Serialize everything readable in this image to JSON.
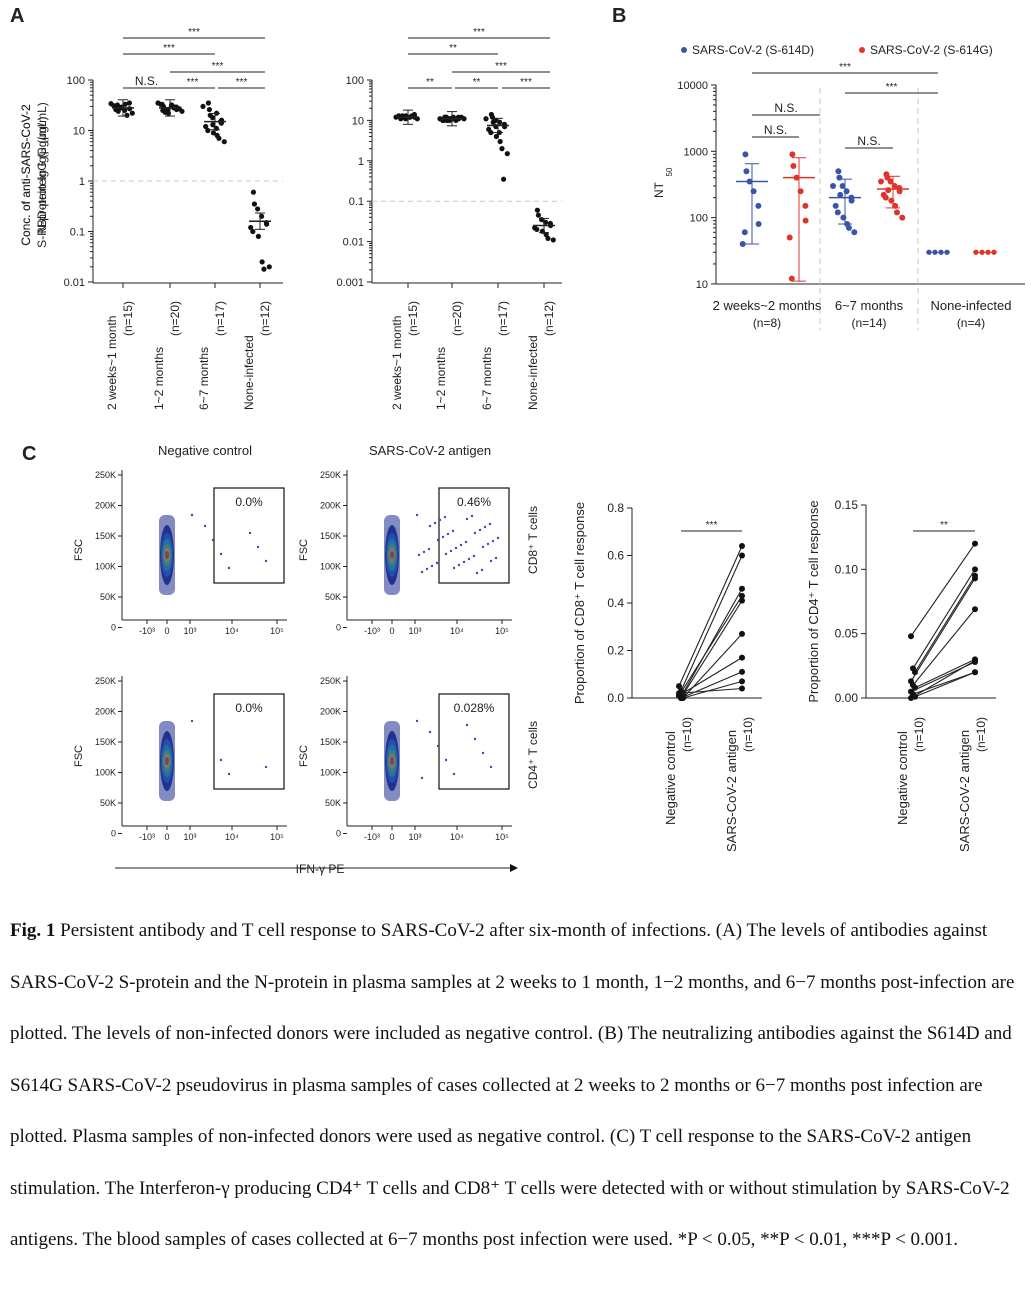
{
  "colors": {
    "s614d": "#3a55a8",
    "s614g": "#e0342a",
    "axis": "#222222",
    "dash": "#c8c8c8",
    "dot": "#1c2e8c"
  },
  "panelA": {
    "letter": "A",
    "left": {
      "ylabel1": "Conc. of anti-SARS-CoV-2",
      "ylabel2": "S-RBD-protein IgG (μg/mL)",
      "yticks": [
        "100",
        "10",
        "1",
        "0.1",
        "0.01"
      ],
      "groups": [
        {
          "label": "2 weeks~1 month",
          "n": "(n=15)",
          "values": [
            30,
            32,
            28,
            25,
            35,
            27,
            31,
            26,
            29,
            33,
            20,
            22,
            34,
            24,
            28
          ],
          "median": 28
        },
        {
          "label": "1~2 months",
          "n": "(n=20)",
          "values": [
            30,
            27,
            24,
            32,
            29,
            26,
            33,
            25,
            22,
            31,
            28,
            27,
            35,
            23,
            26,
            30,
            29,
            24,
            33,
            28
          ],
          "median": 28
        },
        {
          "label": "6~7 months",
          "n": "(n=17)",
          "values": [
            35,
            26,
            18,
            22,
            14,
            16,
            12,
            10,
            9,
            8,
            7,
            6,
            30,
            20,
            13,
            11,
            15
          ],
          "median": 15
        },
        {
          "label": "None-infected",
          "n": "(n=12)",
          "values": [
            0.6,
            0.35,
            0.28,
            0.2,
            0.15,
            0.14,
            0.12,
            0.1,
            0.08,
            0.025,
            0.018,
            0.02
          ],
          "median": 0.16
        }
      ],
      "sig": [
        "***",
        "***",
        "***",
        "N.S.",
        "***",
        "***"
      ]
    },
    "right": {
      "ylabel1": "Conc. of anti-SARS-CoV-2",
      "ylabel2": "N-protein IgG (μg/mL)",
      "yticks": [
        "100",
        "10",
        "1",
        "0.1",
        "0.01",
        "0.001"
      ],
      "groups": [
        {
          "label": "2 weeks~1 month",
          "n": "(n=15)",
          "values": [
            12,
            13,
            11,
            12,
            14,
            12,
            13,
            11,
            12,
            12,
            13,
            11,
            12,
            12,
            13
          ],
          "median": 12
        },
        {
          "label": "1~2 months",
          "n": "(n=20)",
          "values": [
            11,
            12,
            10,
            11,
            12,
            11,
            10,
            12,
            11,
            11,
            10,
            12,
            11,
            10,
            11,
            12,
            11,
            11,
            10,
            12
          ],
          "median": 11
        },
        {
          "label": "6~7 months",
          "n": "(n=17)",
          "values": [
            14,
            12,
            10,
            9,
            8,
            7,
            6,
            5,
            4,
            3,
            2,
            1.5,
            11,
            9,
            7,
            5,
            0.35
          ],
          "median": 7.5
        },
        {
          "label": "None-infected",
          "n": "(n=12)",
          "values": [
            0.06,
            0.045,
            0.035,
            0.03,
            0.028,
            0.025,
            0.022,
            0.02,
            0.018,
            0.015,
            0.012,
            0.011
          ],
          "median": 0.025
        }
      ],
      "sig": [
        "***",
        "**",
        "***",
        "**",
        "**",
        "***"
      ]
    }
  },
  "panelB": {
    "letter": "B",
    "legend": [
      "SARS-CoV-2 (S-614D)",
      "SARS-CoV-2 (S-614G)"
    ],
    "ylabel": "NT",
    "ylabel_sub": "50",
    "yticks": [
      "10000",
      "1000",
      "100",
      "10"
    ],
    "groups": [
      {
        "label": "2 weeks~2 months",
        "n": "(n=8)",
        "d": [
          900,
          500,
          350,
          250,
          150,
          80,
          40,
          60
        ],
        "d_mean": 350,
        "d_lo": 40,
        "d_hi": 650,
        "g": [
          900,
          600,
          400,
          250,
          150,
          90,
          50,
          12
        ],
        "g_mean": 400,
        "g_lo": 11,
        "g_hi": 800
      },
      {
        "label": "6~7 months",
        "n": "(n=14)",
        "d": [
          500,
          400,
          300,
          250,
          200,
          180,
          150,
          120,
          100,
          80,
          70,
          60,
          300,
          220
        ],
        "d_mean": 200,
        "d_lo": 80,
        "d_hi": 380,
        "g": [
          450,
          400,
          350,
          300,
          280,
          250,
          220,
          200,
          180,
          150,
          120,
          100,
          350,
          260
        ],
        "g_mean": 270,
        "g_lo": 140,
        "g_hi": 420
      },
      {
        "label": "None-infected",
        "n": "(n=4)",
        "d": [
          30,
          30,
          30,
          30
        ],
        "g": [
          30,
          30,
          30,
          30
        ]
      }
    ],
    "sig": [
      "***",
      "***",
      "N.S.",
      "N.S.",
      "N.S."
    ]
  },
  "panelC": {
    "letter": "C",
    "col_titles": [
      "Negative control",
      "SARS-CoV-2 antigen"
    ],
    "row_labels": [
      "CD8⁺ T cells",
      "CD4⁺ T cells"
    ],
    "gates": [
      "0.0%",
      "0.46%",
      "0.0%",
      "0.028%"
    ],
    "fsc_label": "FSC",
    "x_axis_label": "IFN-γ PE",
    "yticks": [
      "250K",
      "200K",
      "150K",
      "100K",
      "50K",
      "0"
    ],
    "xticks": [
      "-10³",
      "0",
      "10³",
      "10⁴",
      "10⁵"
    ],
    "cd8": {
      "ylabel": "Proportion of CD8⁺ T cell response",
      "yticks": [
        "0.8",
        "0.6",
        "0.4",
        "0.2",
        "0.0"
      ],
      "sig": "***",
      "x_labels": [
        "Negative control",
        "SARS-CoV-2 antigen"
      ],
      "x_n": [
        "(n=10)",
        "(n=10)"
      ],
      "pairs": [
        [
          0.05,
          0.64
        ],
        [
          0.03,
          0.6
        ],
        [
          0.02,
          0.46
        ],
        [
          0.01,
          0.43
        ],
        [
          0.0,
          0.41
        ],
        [
          0.0,
          0.27
        ],
        [
          0.01,
          0.17
        ],
        [
          0.0,
          0.11
        ],
        [
          0.0,
          0.07
        ],
        [
          0.02,
          0.04
        ]
      ]
    },
    "cd4": {
      "ylabel": "Proportion of CD4⁺ T cell response",
      "yticks": [
        "0.15",
        "0.10",
        "0.05",
        "0.00"
      ],
      "sig": "**",
      "x_labels": [
        "Negative control",
        "SARS-CoV-2 antigen"
      ],
      "x_n": [
        "(n=10)",
        "(n=10)"
      ],
      "pairs": [
        [
          0.048,
          0.12
        ],
        [
          0.023,
          0.1
        ],
        [
          0.02,
          0.095
        ],
        [
          0.013,
          0.093
        ],
        [
          0.01,
          0.069
        ],
        [
          0.008,
          0.03
        ],
        [
          0.005,
          0.028
        ],
        [
          0.003,
          0.02
        ],
        [
          0.001,
          0.02
        ],
        [
          0.0,
          0.029
        ]
      ]
    }
  },
  "caption": {
    "label": "Fig. 1",
    "text": " Persistent antibody and T cell response to SARS-CoV-2 after six-month of infections. (A) The levels of antibodies against SARS-CoV-2 S-protein and the N-protein in plasma samples at 2 weeks to 1 month, 1−2 months, and 6−7 months post-infection are plotted. The levels of non-infected donors were included as negative control. (B) The neutralizing antibodies against the S614D and S614G SARS-CoV-2 pseudovirus in plasma samples of cases collected at 2 weeks to 2 months or 6−7 months post infection are plotted. Plasma samples of non-infected donors were used as negative control. (C) T cell response to the SARS-CoV-2 antigen stimulation. The Interferon-γ producing CD4⁺ T cells and CD8⁺ T cells were detected with or without stimulation by SARS-CoV-2 antigens. The blood samples of cases collected at 6−7 months post infection were used. *P < 0.05, **P < 0.01, ***P < 0.001."
  }
}
